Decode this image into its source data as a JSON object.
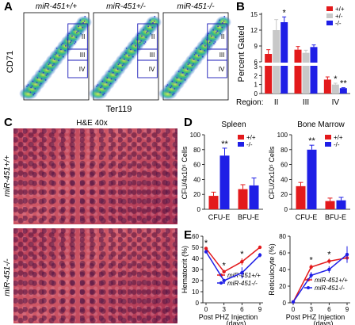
{
  "panel_labels": {
    "A": "A",
    "B": "B",
    "C": "C",
    "D": "D",
    "E": "E"
  },
  "panelA": {
    "ylabel": "CD71",
    "xlabel": "Ter119",
    "plots": [
      {
        "title": "miR-451+/+",
        "regions": [
          "II",
          "III",
          "IV"
        ]
      },
      {
        "title": "miR-451+/-",
        "regions": [
          "II",
          "III",
          "IV"
        ]
      },
      {
        "title": "miR-451-/-",
        "regions": [
          "II",
          "III",
          "IV"
        ]
      }
    ],
    "ticks_y": [
      "10⁴",
      "10³",
      "10²",
      "10¹",
      "10⁰"
    ],
    "ticks_x": [
      "10⁰",
      "10¹",
      "10²",
      "10³",
      "10⁴"
    ]
  },
  "panelC": {
    "title": "H&E 40x",
    "top_label": "miR-451+/+",
    "bottom_label": "miR-451-/-"
  },
  "chart_data": [
    {
      "type": "bar",
      "panel": "B",
      "ylabel": "Percent Gated",
      "xlabel": "Region:",
      "categories": [
        "II",
        "III",
        "IV"
      ],
      "legend": [
        "+/+",
        "+/-",
        "-/-"
      ],
      "colors": [
        "#e31a1c",
        "#c8c8c8",
        "#1f1fe6"
      ],
      "series": [
        {
          "name": "+/+",
          "values": [
            7.5,
            8.3,
            1.55
          ],
          "err": [
            0.8,
            0.6,
            0.3
          ]
        },
        {
          "name": "+/-",
          "values": [
            12.0,
            7.7,
            1.0
          ],
          "err": [
            2.0,
            0.5,
            0.15
          ]
        },
        {
          "name": "-/-",
          "values": [
            13.5,
            8.8,
            0.6
          ],
          "err": [
            1.0,
            0.4,
            0.05
          ]
        }
      ],
      "significance": [
        {
          "category": "II",
          "series": "-/-",
          "mark": "*"
        },
        {
          "category": "IV",
          "series": "+/-",
          "mark": "*"
        },
        {
          "category": "IV",
          "series": "-/-",
          "mark": "**"
        }
      ],
      "yticks": [
        "0",
        "1",
        "2",
        "3",
        "6",
        "9",
        "12",
        "15"
      ]
    },
    {
      "type": "bar",
      "panel": "D",
      "title": "Spleen",
      "ylabel": "CFU/4x10⁵ Cells",
      "categories": [
        "CFU-E",
        "BFU-E"
      ],
      "legend": [
        "+/+",
        "-/-"
      ],
      "colors": [
        "#e31a1c",
        "#1f1fe6"
      ],
      "series": [
        {
          "name": "+/+",
          "values": [
            18,
            27
          ],
          "err": [
            5,
            6
          ]
        },
        {
          "name": "-/-",
          "values": [
            72,
            32
          ],
          "err": [
            10,
            10
          ]
        }
      ],
      "ylim": [
        0,
        100
      ],
      "yticks": [
        "0",
        "20",
        "40",
        "60",
        "80",
        "100"
      ],
      "significance": [
        {
          "category": "CFU-E",
          "series": "-/-",
          "mark": "**"
        }
      ]
    },
    {
      "type": "bar",
      "panel": "D",
      "title": "Bone Marrow",
      "ylabel": "CFU/2x10⁵ Cells",
      "categories": [
        "CFU-E",
        "BFU-E"
      ],
      "legend": [
        "+/+",
        "-/-"
      ],
      "colors": [
        "#e31a1c",
        "#1f1fe6"
      ],
      "series": [
        {
          "name": "+/+",
          "values": [
            31,
            11
          ],
          "err": [
            5,
            4
          ]
        },
        {
          "name": "-/-",
          "values": [
            80,
            12
          ],
          "err": [
            6,
            4
          ]
        }
      ],
      "ylim": [
        0,
        100
      ],
      "yticks": [
        "0",
        "20",
        "40",
        "60",
        "80",
        "100"
      ],
      "significance": [
        {
          "category": "CFU-E",
          "series": "-/-",
          "mark": "**"
        }
      ]
    },
    {
      "type": "line",
      "panel": "E",
      "ylabel": "Hematocrit (%)",
      "xlabel": "Post PHZ Injection",
      "xunit": "(days)",
      "x": [
        0,
        3,
        6,
        9
      ],
      "ylim": [
        0,
        60
      ],
      "yticks": [
        "0",
        "10",
        "20",
        "30",
        "40",
        "50",
        "60"
      ],
      "series": [
        {
          "name": "miR-451+/+",
          "color": "#e31a1c",
          "values": [
            49,
            28,
            37,
            50
          ],
          "err": [
            1,
            1.5,
            3,
            1
          ]
        },
        {
          "name": "miR-451-/-",
          "color": "#1f1fe6",
          "values": [
            46,
            20,
            27,
            43
          ],
          "err": [
            1,
            1,
            5,
            2
          ]
        }
      ],
      "significance": [
        {
          "x": 0,
          "mark": "*"
        },
        {
          "x": 3,
          "mark": "*"
        },
        {
          "x": 6,
          "mark": "*"
        }
      ]
    },
    {
      "type": "line",
      "panel": "E",
      "ylabel": "Reticulocyte (%)",
      "xlabel": "Post PHZ Injection",
      "xunit": "(days)",
      "x": [
        0,
        3,
        6,
        9
      ],
      "ylim": [
        0,
        80
      ],
      "yticks": [
        "0",
        "20",
        "40",
        "60",
        "80"
      ],
      "series": [
        {
          "name": "miR-451+/+",
          "color": "#e31a1c",
          "values": [
            1,
            43,
            50,
            54
          ],
          "err": [
            0.5,
            3,
            3,
            5
          ]
        },
        {
          "name": "miR-451-/-",
          "color": "#1f1fe6",
          "values": [
            1,
            33,
            40,
            58
          ],
          "err": [
            0.5,
            4,
            4,
            10
          ]
        }
      ],
      "significance": [
        {
          "x": 3,
          "mark": "*"
        },
        {
          "x": 6,
          "mark": "*"
        }
      ]
    }
  ]
}
